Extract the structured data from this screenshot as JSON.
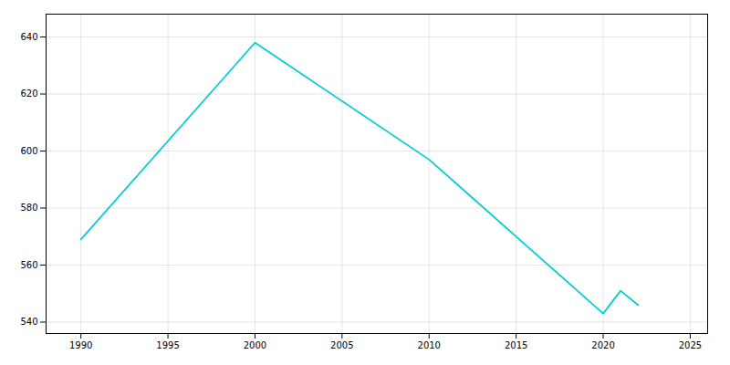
{
  "chart_data": {
    "type": "line",
    "x": [
      1990,
      2000,
      2010,
      2020,
      2021,
      2022
    ],
    "values": [
      569,
      638,
      597,
      543,
      551,
      546
    ],
    "color": "#00CED1",
    "xlim": [
      1988,
      2026
    ],
    "ylim": [
      536,
      648
    ],
    "xticks": [
      1990,
      1995,
      2000,
      2005,
      2010,
      2015,
      2020,
      2025
    ],
    "yticks": [
      540,
      560,
      580,
      600,
      620,
      640
    ],
    "grid": true
  }
}
